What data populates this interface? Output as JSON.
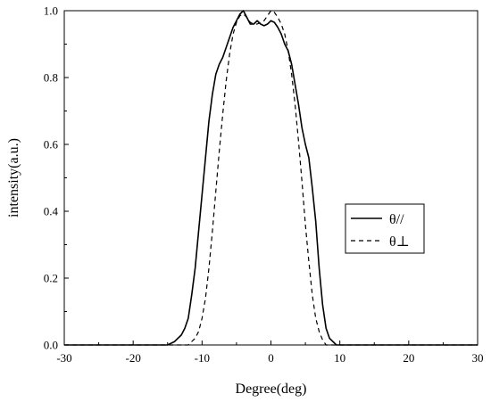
{
  "chart_data": {
    "type": "line",
    "title": "",
    "xlabel": "Degree(deg)",
    "ylabel": "intensity(a.u.)",
    "xlim": [
      -30,
      30
    ],
    "ylim": [
      0.0,
      1.0
    ],
    "xticks": [
      -30,
      -20,
      -10,
      0,
      10,
      20,
      30
    ],
    "yticks": [
      0.0,
      0.2,
      0.4,
      0.6,
      0.8,
      1.0
    ],
    "xtick_labels": [
      "-30",
      "-20",
      "-10",
      "0",
      "10",
      "20",
      "30"
    ],
    "ytick_labels": [
      "0.0",
      "0.2",
      "0.4",
      "0.6",
      "0.8",
      "1.0"
    ],
    "grid": false,
    "legend_position": "right",
    "series": [
      {
        "name": "θ//",
        "style": "solid",
        "color": "#000000",
        "x": [
          -30,
          -20,
          -15,
          -14,
          -13,
          -12.5,
          -12,
          -11.5,
          -11,
          -10.5,
          -10,
          -9.5,
          -9,
          -8.5,
          -8,
          -7.5,
          -7,
          -6.5,
          -6,
          -5.5,
          -5,
          -4.5,
          -4,
          -3.5,
          -3,
          -2.5,
          -2,
          -1.5,
          -1,
          -0.5,
          0,
          0.5,
          1,
          1.5,
          2,
          2.5,
          3,
          3.5,
          4,
          4.5,
          5,
          5.5,
          6,
          6.5,
          7,
          7.5,
          8,
          8.5,
          9,
          9.5,
          10,
          15,
          20,
          30
        ],
        "y": [
          0.0,
          0.0,
          0.0,
          0.01,
          0.03,
          0.05,
          0.08,
          0.15,
          0.23,
          0.34,
          0.45,
          0.56,
          0.67,
          0.75,
          0.81,
          0.84,
          0.86,
          0.89,
          0.92,
          0.95,
          0.97,
          0.99,
          1.0,
          0.98,
          0.96,
          0.96,
          0.97,
          0.96,
          0.955,
          0.96,
          0.97,
          0.965,
          0.95,
          0.93,
          0.9,
          0.88,
          0.84,
          0.78,
          0.72,
          0.65,
          0.6,
          0.56,
          0.47,
          0.37,
          0.23,
          0.12,
          0.05,
          0.02,
          0.01,
          0.0,
          0.0,
          0.0,
          0.0,
          0.0
        ]
      },
      {
        "name": "θ⊥",
        "style": "dashed",
        "color": "#000000",
        "x": [
          -30,
          -20,
          -13,
          -12,
          -11.5,
          -11,
          -10.5,
          -10,
          -9.5,
          -9,
          -8.5,
          -8,
          -7.5,
          -7,
          -6.5,
          -6,
          -5.5,
          -5,
          -4.5,
          -4,
          -3.5,
          -3,
          -2.5,
          -2,
          -1.5,
          -1,
          -0.5,
          0,
          0.5,
          1,
          1.5,
          2,
          2.5,
          3,
          3.5,
          4,
          4.5,
          5,
          5.5,
          6,
          6.5,
          7,
          7.5,
          8,
          9,
          10,
          20,
          30
        ],
        "y": [
          0.0,
          0.0,
          0.0,
          0.0,
          0.01,
          0.02,
          0.04,
          0.08,
          0.14,
          0.23,
          0.34,
          0.46,
          0.58,
          0.69,
          0.79,
          0.87,
          0.93,
          0.965,
          0.985,
          0.99,
          0.98,
          0.965,
          0.96,
          0.96,
          0.965,
          0.97,
          0.985,
          1.0,
          0.995,
          0.98,
          0.96,
          0.93,
          0.88,
          0.81,
          0.72,
          0.61,
          0.49,
          0.36,
          0.25,
          0.15,
          0.08,
          0.04,
          0.015,
          0.0,
          0.0,
          0.0,
          0.0,
          0.0
        ]
      }
    ]
  }
}
